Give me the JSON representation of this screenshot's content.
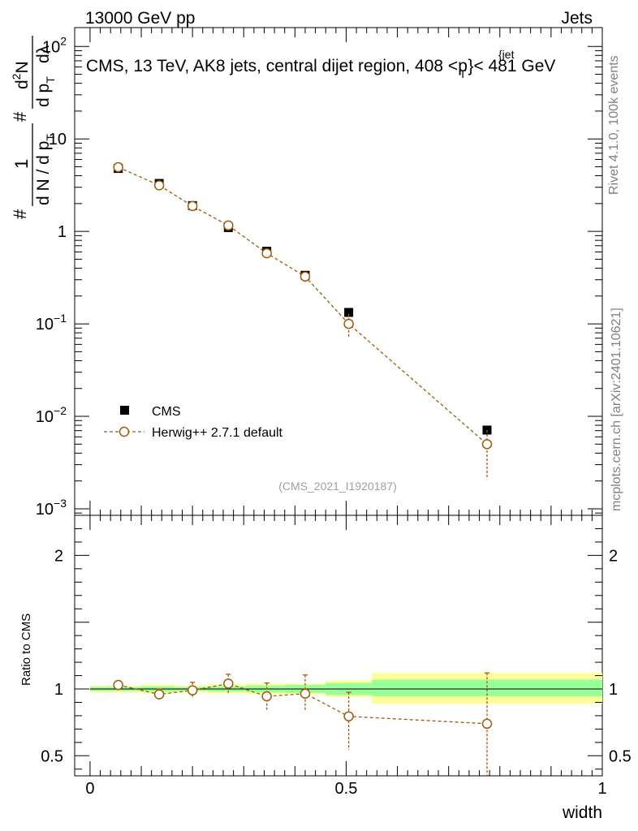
{
  "header": {
    "left": "13000 GeV pp",
    "right": "Jets"
  },
  "side_text": {
    "rivet": "Rivet 4.1.0,  100k events",
    "mcplots": "mcplots.cern.ch [arXiv:2401.10621]"
  },
  "chart_data": [
    {
      "type": "scatter",
      "panel": "main",
      "title": "CMS, 13 TeV, AK8 jets, central dijet region, 408 <p",
      "title_sub": "T",
      "title_sup": "{jet",
      "title_end": "}< 481 GeV",
      "ylabel": {
        "hash1": "#",
        "one": "1",
        "dn": "d N / d p",
        "dn_sub": "T",
        "hash2": "#",
        "d2n": "d",
        "d2n_sup": "2",
        "d2n_n": "N",
        "dpt": "d p",
        "dpt_sub": "T",
        "dlam": "dλ"
      },
      "yscale": "log",
      "ylim": [
        0.00085,
        160
      ],
      "xlim": [
        -0.03,
        1.0
      ],
      "yticks": [
        {
          "v": 100,
          "base": "10",
          "exp": "2"
        },
        {
          "v": 10,
          "base": "10",
          "exp": ""
        },
        {
          "v": 1,
          "base": "1",
          "exp": ""
        },
        {
          "v": 0.1,
          "base": "10",
          "exp": "−1"
        },
        {
          "v": 0.01,
          "base": "10",
          "exp": "−2"
        },
        {
          "v": 0.001,
          "base": "10",
          "exp": "−3"
        }
      ],
      "watermark": "(CMS_2021_I1920187)",
      "legend": {
        "position": "bottom-left",
        "entries": [
          "CMS",
          "Herwig++ 2.7.1 default"
        ]
      },
      "series": [
        {
          "name": "CMS",
          "marker": "filled-square",
          "color": "#000000",
          "x": [
            0.055,
            0.135,
            0.2,
            0.27,
            0.345,
            0.42,
            0.505,
            0.775
          ],
          "y": [
            4.8,
            3.3,
            1.9,
            1.1,
            0.61,
            0.335,
            0.133,
            0.0071
          ],
          "yerr_lo": [
            0.15,
            0.1,
            0.06,
            0.04,
            0.025,
            0.015,
            0.007,
            0.0004
          ],
          "yerr_hi": [
            0.15,
            0.1,
            0.06,
            0.04,
            0.025,
            0.015,
            0.007,
            0.0004
          ]
        },
        {
          "name": "Herwig++ 2.7.1 default",
          "marker": "open-circle",
          "line": "dashed",
          "color": "#a05a0a",
          "x": [
            0.055,
            0.135,
            0.2,
            0.27,
            0.345,
            0.42,
            0.505,
            0.775
          ],
          "y": [
            4.95,
            3.15,
            1.88,
            1.16,
            0.58,
            0.325,
            0.1,
            0.005
          ],
          "yerr_lo": [
            0.15,
            0.12,
            0.08,
            0.06,
            0.05,
            0.04,
            0.028,
            0.0029
          ],
          "yerr_hi": [
            0.15,
            0.12,
            0.08,
            0.06,
            0.05,
            0.04,
            0.028,
            0.0021
          ]
        }
      ]
    },
    {
      "type": "scatter",
      "panel": "ratio",
      "ylabel": "Ratio to CMS",
      "xlabel": "width",
      "ylim": [
        0.35,
        2.3
      ],
      "xlim": [
        -0.03,
        1.0
      ],
      "yticks": [
        {
          "v": 2,
          "label": "2"
        },
        {
          "v": 1,
          "label": "1"
        },
        {
          "v": 0.5,
          "label": "0.5"
        }
      ],
      "xticks": [
        {
          "v": 0,
          "label": "0"
        },
        {
          "v": 0.5,
          "label": "0.5"
        },
        {
          "v": 1,
          "label": "1"
        }
      ],
      "bands": [
        {
          "x0": 0.0,
          "x1": 0.1,
          "yellow": [
            0.975,
            1.025
          ],
          "green": [
            0.985,
            1.015
          ]
        },
        {
          "x0": 0.1,
          "x1": 0.165,
          "yellow": [
            0.965,
            1.035
          ],
          "green": [
            0.98,
            1.02
          ]
        },
        {
          "x0": 0.165,
          "x1": 0.23,
          "yellow": [
            0.975,
            1.025
          ],
          "green": [
            0.985,
            1.015
          ]
        },
        {
          "x0": 0.23,
          "x1": 0.305,
          "yellow": [
            0.965,
            1.035
          ],
          "green": [
            0.98,
            1.02
          ]
        },
        {
          "x0": 0.305,
          "x1": 0.38,
          "yellow": [
            0.96,
            1.04
          ],
          "green": [
            0.975,
            1.025
          ]
        },
        {
          "x0": 0.38,
          "x1": 0.46,
          "yellow": [
            0.96,
            1.04
          ],
          "green": [
            0.97,
            1.03
          ]
        },
        {
          "x0": 0.46,
          "x1": 0.55,
          "yellow": [
            0.94,
            1.065
          ],
          "green": [
            0.955,
            1.045
          ]
        },
        {
          "x0": 0.55,
          "x1": 1.0,
          "yellow": [
            0.89,
            1.12
          ],
          "green": [
            0.945,
            1.07
          ]
        }
      ],
      "series": [
        {
          "name": "Herwig++ 2.7.1 default",
          "color": "#a05a0a",
          "x": [
            0.055,
            0.135,
            0.2,
            0.27,
            0.345,
            0.42,
            0.505,
            0.775
          ],
          "y": [
            1.03,
            0.96,
            0.99,
            1.04,
            0.945,
            0.965,
            0.795,
            0.74
          ],
          "yerr_lo": [
            0.03,
            0.04,
            0.06,
            0.07,
            0.1,
            0.13,
            0.25,
            0.45
          ],
          "yerr_hi": [
            0.03,
            0.04,
            0.06,
            0.07,
            0.1,
            0.14,
            0.18,
            0.38
          ]
        }
      ]
    }
  ]
}
